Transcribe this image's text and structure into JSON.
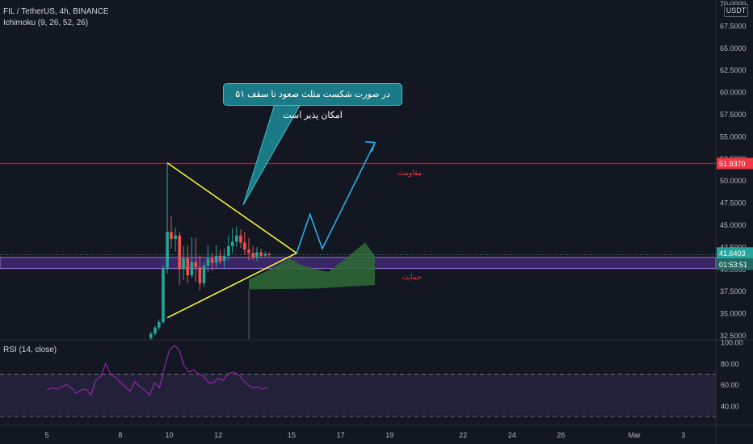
{
  "header": {
    "symbol_line": "FIL / TetherUS, 4h, BINANCE",
    "indicator_line": "Ichimoku (9, 26, 52, 26)"
  },
  "rsi_header": "RSI (14, close)",
  "currency_label": "USDT",
  "callout_text": "در صورت شکست مثلث صعود تا سقف ۵۱ امکان پذیر است",
  "resistance_label": "مقاومت",
  "support_label": "حمایت",
  "colors": {
    "background": "#131722",
    "up": "#26a69a",
    "down": "#ef5350",
    "resistance_line": "#ff0000",
    "triangle": "#ffff33",
    "arrow": "#29b6f6",
    "support_band": "#673ab7",
    "cloud": "#2e6b35",
    "rsi_line": "#9c27b0"
  },
  "badges": {
    "resistance_price": "51.9370",
    "last_price": "41.6403",
    "countdown": "01:53:51"
  },
  "chart_data": [
    {
      "type": "candlestick",
      "title": "FIL / TetherUS, 4h, BINANCE",
      "ylim": [
        32,
        70
      ],
      "y_ticks": [
        "70.0000",
        "67.5000",
        "65.0000",
        "62.5000",
        "60.0000",
        "57.5000",
        "55.0000",
        "52.5000",
        "50.0000",
        "47.5000",
        "45.0000",
        "42.5000",
        "40.0000",
        "37.5000",
        "35.0000",
        "32.5000"
      ],
      "x_ticks": [
        "5",
        "8",
        "10",
        "12",
        "15",
        "17",
        "19",
        "22",
        "24",
        "26",
        "Mar",
        "3"
      ],
      "x_tick_days": [
        5,
        8,
        10,
        12,
        15,
        17,
        19,
        22,
        24,
        26,
        29,
        31
      ],
      "candles": [
        {
          "d": 9.25,
          "o": 32.2,
          "h": 32.9,
          "l": 32.0,
          "c": 32.7
        },
        {
          "d": 9.42,
          "o": 32.7,
          "h": 33.6,
          "l": 32.5,
          "c": 33.4
        },
        {
          "d": 9.58,
          "o": 33.4,
          "h": 34.3,
          "l": 33.1,
          "c": 34.0
        },
        {
          "d": 9.75,
          "o": 34.0,
          "h": 40.5,
          "l": 33.8,
          "c": 40.0
        },
        {
          "d": 9.92,
          "o": 40.0,
          "h": 52.0,
          "l": 39.5,
          "c": 44.2
        },
        {
          "d": 10.08,
          "o": 44.2,
          "h": 46.0,
          "l": 42.3,
          "c": 43.4
        },
        {
          "d": 10.25,
          "o": 43.4,
          "h": 44.7,
          "l": 42.0,
          "c": 43.8
        },
        {
          "d": 10.42,
          "o": 43.8,
          "h": 44.2,
          "l": 38.2,
          "c": 40.0
        },
        {
          "d": 10.58,
          "o": 40.0,
          "h": 42.6,
          "l": 38.8,
          "c": 41.2
        },
        {
          "d": 10.75,
          "o": 41.2,
          "h": 42.6,
          "l": 38.4,
          "c": 39.3
        },
        {
          "d": 10.92,
          "o": 39.3,
          "h": 43.6,
          "l": 39.0,
          "c": 40.8
        },
        {
          "d": 11.08,
          "o": 40.8,
          "h": 43.5,
          "l": 38.6,
          "c": 40.2
        },
        {
          "d": 11.25,
          "o": 40.2,
          "h": 41.5,
          "l": 37.6,
          "c": 38.4
        },
        {
          "d": 11.42,
          "o": 38.4,
          "h": 40.8,
          "l": 38.0,
          "c": 40.4
        },
        {
          "d": 11.58,
          "o": 40.4,
          "h": 42.7,
          "l": 39.6,
          "c": 41.2
        },
        {
          "d": 11.75,
          "o": 41.2,
          "h": 41.8,
          "l": 39.8,
          "c": 40.7
        },
        {
          "d": 11.92,
          "o": 40.7,
          "h": 42.7,
          "l": 40.1,
          "c": 41.5
        },
        {
          "d": 12.08,
          "o": 41.5,
          "h": 42.2,
          "l": 40.6,
          "c": 40.9
        },
        {
          "d": 12.25,
          "o": 40.9,
          "h": 42.3,
          "l": 40.0,
          "c": 41.5
        },
        {
          "d": 12.42,
          "o": 41.5,
          "h": 43.8,
          "l": 41.0,
          "c": 42.6
        },
        {
          "d": 12.58,
          "o": 42.6,
          "h": 44.6,
          "l": 41.8,
          "c": 43.1
        },
        {
          "d": 12.75,
          "o": 43.1,
          "h": 44.8,
          "l": 42.5,
          "c": 43.8
        },
        {
          "d": 12.92,
          "o": 43.8,
          "h": 44.5,
          "l": 42.4,
          "c": 43.0
        },
        {
          "d": 13.08,
          "o": 43.0,
          "h": 44.2,
          "l": 41.6,
          "c": 42.2
        },
        {
          "d": 13.25,
          "o": 42.2,
          "h": 43.5,
          "l": 41.0,
          "c": 41.8
        },
        {
          "d": 13.42,
          "o": 41.8,
          "h": 42.6,
          "l": 41.0,
          "c": 41.3
        },
        {
          "d": 13.58,
          "o": 41.3,
          "h": 42.5,
          "l": 40.9,
          "c": 41.9
        },
        {
          "d": 13.75,
          "o": 41.9,
          "h": 42.3,
          "l": 41.2,
          "c": 41.5
        },
        {
          "d": 13.92,
          "o": 41.5,
          "h": 42.0,
          "l": 41.3,
          "c": 41.7
        },
        {
          "d": 14.08,
          "o": 41.7,
          "h": 41.9,
          "l": 41.4,
          "c": 41.64
        }
      ],
      "resistance_level": 51.937,
      "support_zone": [
        40.6,
        41.5
      ],
      "triangle": [
        {
          "d": 9.92,
          "p": 52.0
        },
        {
          "d": 15.2,
          "p": 41.8
        },
        {
          "d": 9.92,
          "p": 34.5
        }
      ],
      "projection_arrow": [
        {
          "d": 15.2,
          "p": 41.8
        },
        {
          "d": 15.75,
          "p": 46.2
        },
        {
          "d": 16.25,
          "p": 42.3
        },
        {
          "d": 18.4,
          "p": 54.3
        }
      ],
      "cloud_top": [
        {
          "d": 13.25,
          "p": 38.8
        },
        {
          "d": 14.3,
          "p": 40.2
        },
        {
          "d": 14.9,
          "p": 41.2
        },
        {
          "d": 15.45,
          "p": 40.4
        },
        {
          "d": 16.1,
          "p": 39.9
        },
        {
          "d": 16.5,
          "p": 39.7
        },
        {
          "d": 17.3,
          "p": 41.4
        },
        {
          "d": 18.0,
          "p": 43.0
        },
        {
          "d": 18.4,
          "p": 41.5
        }
      ],
      "cloud_bottom": [
        {
          "d": 13.25,
          "p": 37.7
        },
        {
          "d": 16.0,
          "p": 37.8
        },
        {
          "d": 18.4,
          "p": 38.2
        }
      ]
    },
    {
      "type": "line",
      "title": "RSI (14, close)",
      "ylim": [
        28,
        100
      ],
      "y_ticks": [
        "100.00",
        "80.00",
        "60.00",
        "40.00"
      ],
      "bands": [
        30,
        70
      ],
      "x": [
        5.0,
        5.2,
        5.4,
        5.6,
        5.8,
        6.0,
        6.2,
        6.4,
        6.6,
        6.8,
        7.0,
        7.2,
        7.4,
        7.6,
        7.8,
        8.0,
        8.2,
        8.4,
        8.6,
        8.8,
        9.0,
        9.2,
        9.4,
        9.6,
        9.8,
        10.0,
        10.2,
        10.4,
        10.6,
        10.8,
        11.0,
        11.2,
        11.4,
        11.6,
        11.8,
        12.0,
        12.2,
        12.4,
        12.6,
        12.8,
        13.0,
        13.2,
        13.4,
        13.6,
        13.8,
        14.0
      ],
      "values": [
        55,
        57,
        56,
        58,
        60,
        57,
        52,
        55,
        56,
        50,
        64,
        68,
        80,
        70,
        67,
        62,
        58,
        54,
        63,
        58,
        55,
        50,
        62,
        57,
        76,
        92,
        97,
        93,
        78,
        72,
        74,
        70,
        68,
        62,
        62,
        66,
        64,
        70,
        72,
        70,
        65,
        60,
        57,
        58,
        56,
        57
      ]
    }
  ]
}
